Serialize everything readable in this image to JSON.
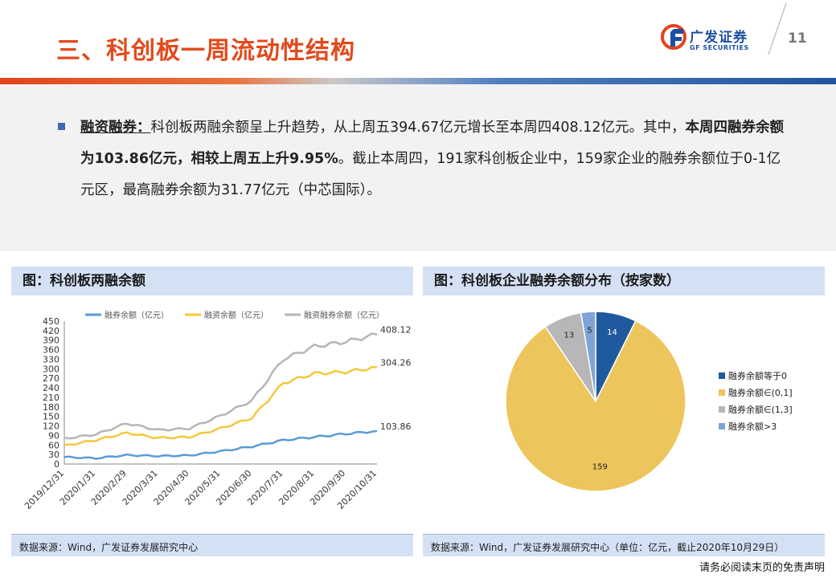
{
  "header": {
    "title": "三、科创板一周流动性结构",
    "logo_cn": "广发证券",
    "logo_en": "GF SECURITIES",
    "page_number": "11"
  },
  "summary": {
    "label": "融资融券：",
    "seg1": "科创板两融余额呈上升趋势，从上周五394.67亿元增长至本周四408.12亿元。其中，",
    "seg2_bold": "本周四融券余额为103.86亿元，相较上周五上升9.95%",
    "seg3": "。截止本周四，191家科创板企业中，159家企业的融券余额位于0-1亿元区，最高融券余额为31.77亿元（中芯国际）。"
  },
  "left_panel": {
    "title": "图：科创板两融余额",
    "source": "数据来源：Wind，广发证券发展研究中心"
  },
  "right_panel": {
    "title": "图：科创板企业融券余额分布（按家数）",
    "source": "数据来源：Wind，广发证券发展研究中心（单位：亿元，截止2020年10月29日）"
  },
  "footer": {
    "disclaimer": "请务必阅读末页的免责声明"
  },
  "chart_data": [
    {
      "type": "line",
      "title": "科创板两融余额",
      "x": [
        "2019/12/31",
        "2020/1/31",
        "2020/2/29",
        "2020/3/31",
        "2020/4/30",
        "2020/5/31",
        "2020/6/30",
        "2020/7/31",
        "2020/8/31",
        "2020/9/30",
        "2020/10/31"
      ],
      "series": [
        {
          "name": "融券余额（亿元）",
          "color": "#5b9bd5",
          "values": [
            22,
            18,
            28,
            25,
            27,
            40,
            55,
            75,
            85,
            95,
            103.86
          ]
        },
        {
          "name": "融资余额（亿元）",
          "color": "#f2c83d",
          "values": [
            58,
            75,
            98,
            82,
            85,
            112,
            145,
            255,
            285,
            290,
            304.26
          ]
        },
        {
          "name": "融资融券余额（亿元）",
          "color": "#b5b5b5",
          "values": [
            80,
            93,
            128,
            107,
            112,
            152,
            200,
            330,
            370,
            385,
            408.12
          ]
        }
      ],
      "end_labels": [
        "408.12",
        "304.26",
        "103.86"
      ],
      "yticks": [
        0,
        30,
        60,
        90,
        120,
        150,
        180,
        210,
        240,
        270,
        300,
        330,
        360,
        390,
        420,
        450
      ],
      "ylim": [
        0,
        450
      ]
    },
    {
      "type": "pie",
      "title": "科创板企业融券余额分布（按家数）",
      "slices": [
        {
          "label": "融券余额等于0",
          "value": 14,
          "color": "#1f5a9e"
        },
        {
          "label": "融券余额∈(0,1]",
          "value": 159,
          "color": "#ecc55c"
        },
        {
          "label": "融券余额∈(1,3]",
          "value": 13,
          "color": "#b7b7b7"
        },
        {
          "label": "融券余额>3",
          "value": 5,
          "color": "#7ea4d8"
        }
      ]
    }
  ]
}
